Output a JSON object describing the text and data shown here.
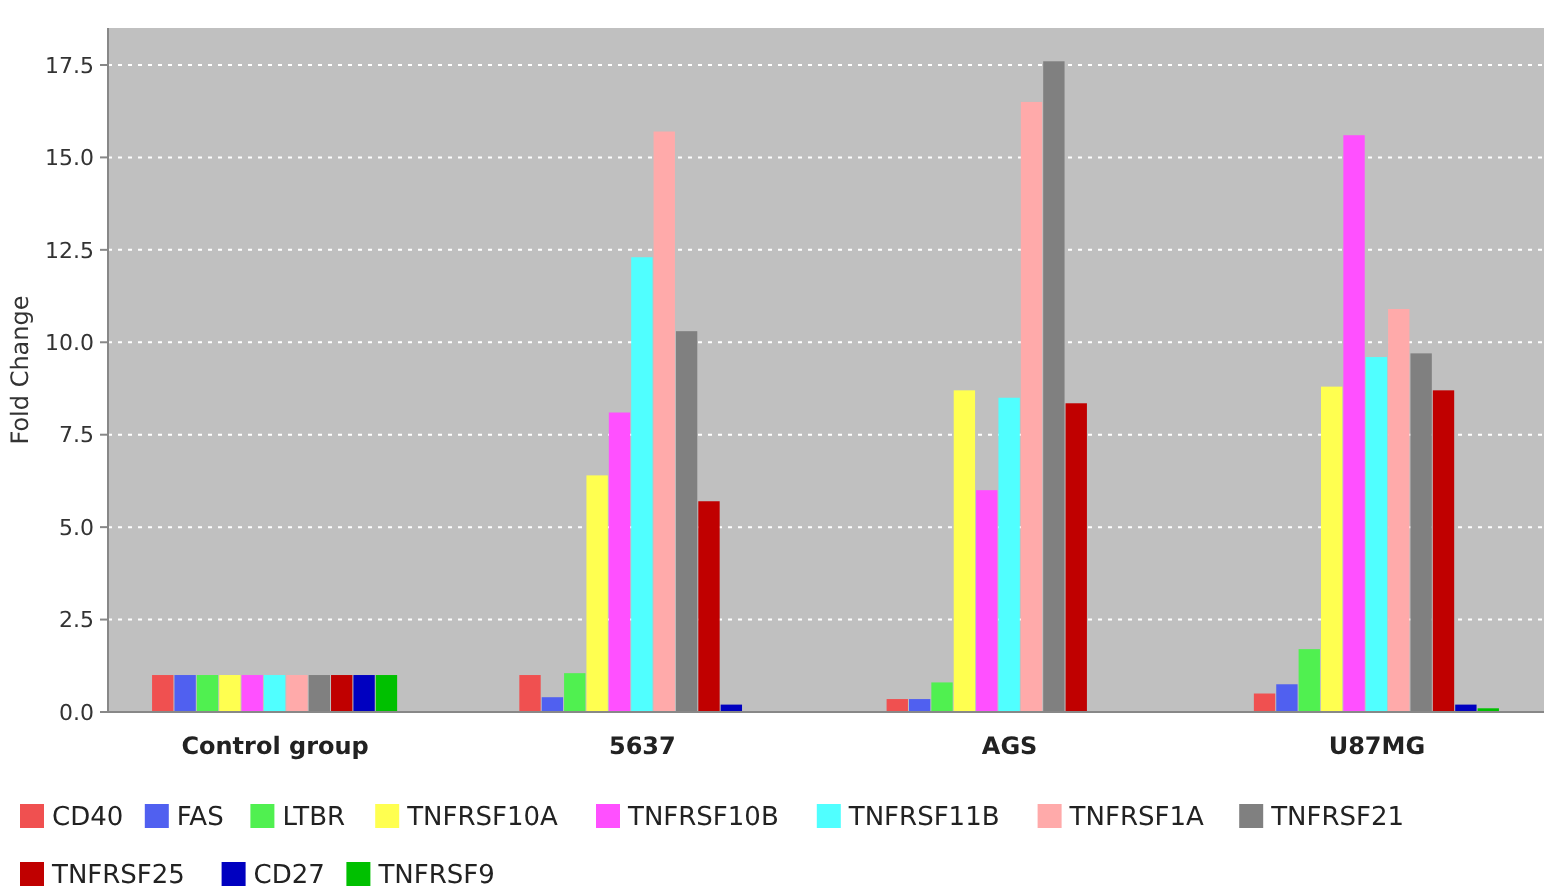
{
  "chart_data": {
    "type": "bar",
    "ylabel": "Fold Change",
    "categories": [
      "Control group",
      "5637",
      "AGS",
      "U87MG"
    ],
    "series": [
      {
        "name": "CD40",
        "color": "#f05050",
        "values": [
          1.0,
          1.0,
          0.35,
          0.5
        ]
      },
      {
        "name": "FAS",
        "color": "#5060f0",
        "values": [
          1.0,
          0.4,
          0.35,
          0.75
        ]
      },
      {
        "name": "LTBR",
        "color": "#50f050",
        "values": [
          1.0,
          1.05,
          0.8,
          1.7
        ]
      },
      {
        "name": "TNFRSF10A",
        "color": "#ffff50",
        "values": [
          1.0,
          6.4,
          8.7,
          8.8
        ]
      },
      {
        "name": "TNFRSF10B",
        "color": "#ff50ff",
        "values": [
          1.0,
          8.1,
          6.0,
          15.6
        ]
      },
      {
        "name": "TNFRSF11B",
        "color": "#50ffff",
        "values": [
          1.0,
          12.3,
          8.5,
          9.6
        ]
      },
      {
        "name": "TNFRSF1A",
        "color": "#ffaaaa",
        "values": [
          1.0,
          15.7,
          16.5,
          10.9
        ]
      },
      {
        "name": "TNFRSF21",
        "color": "#808080",
        "values": [
          1.0,
          10.3,
          17.6,
          9.7
        ]
      },
      {
        "name": "TNFRSF25",
        "color": "#c00000",
        "values": [
          1.0,
          5.7,
          8.35,
          8.7
        ]
      },
      {
        "name": "CD27",
        "color": "#0000c0",
        "values": [
          1.0,
          0.2,
          0.0,
          0.2
        ]
      },
      {
        "name": "TNFRSF9",
        "color": "#00c000",
        "values": [
          1.0,
          0.0,
          0.0,
          0.1
        ]
      }
    ],
    "ylim": [
      0,
      18.5
    ],
    "yticks": [
      {
        "value": 0,
        "label": "0.0"
      },
      {
        "value": 2.5,
        "label": "2.5"
      },
      {
        "value": 5,
        "label": "5.0"
      },
      {
        "value": 7.5,
        "label": "7.5"
      },
      {
        "value": 10,
        "label": "10.0"
      },
      {
        "value": 12.5,
        "label": "12.5"
      },
      {
        "value": 15,
        "label": "15.0"
      },
      {
        "value": 17.5,
        "label": "17.5"
      }
    ],
    "grid": "y",
    "legend": "bottom"
  }
}
